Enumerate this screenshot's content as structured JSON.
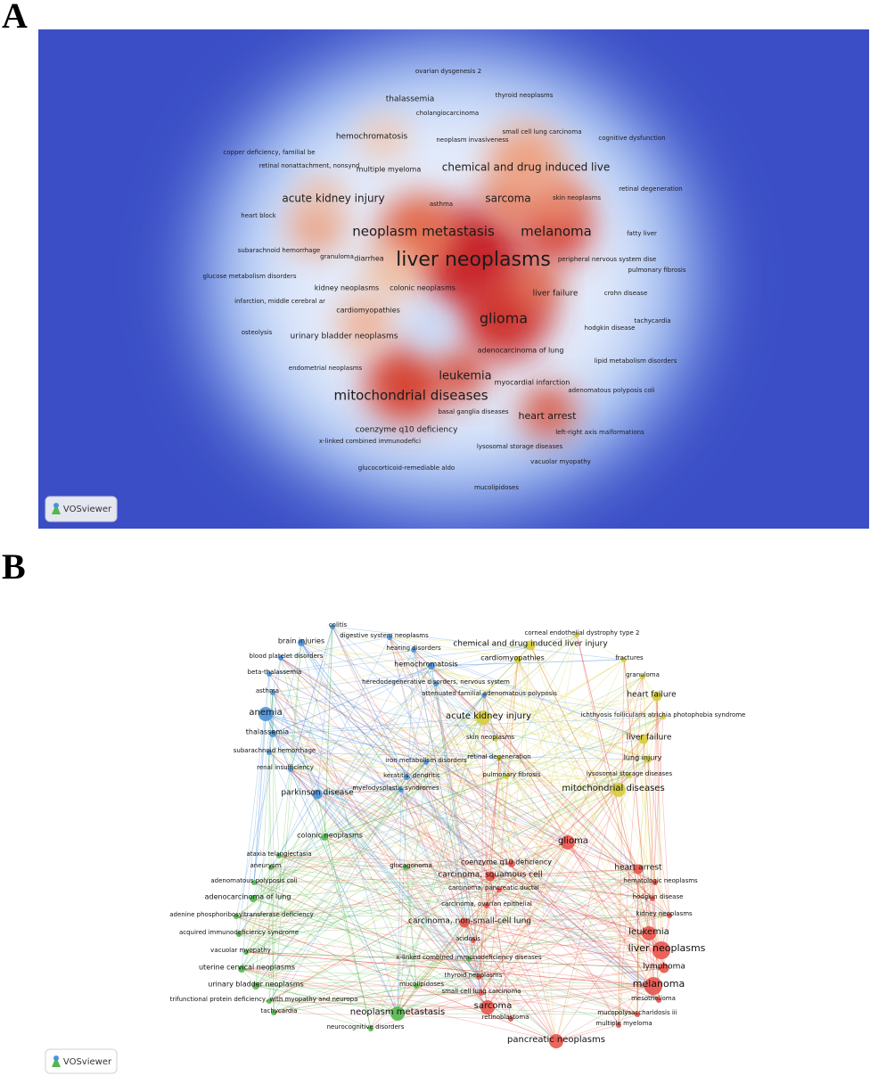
{
  "panel_a": {
    "letter": "A",
    "logo": "VOSviewer",
    "labels": [
      "ovarian dysgenesis 2",
      "thyroid neoplasms",
      "thalassemia",
      "cholangiocarcinoma",
      "small cell lung carcinoma",
      "hemochromatosis",
      "neoplasm invasiveness",
      "cognitive dysfunction",
      "copper deficiency, familial be",
      "retinal nonattachment, nonsynd",
      "multiple myeloma",
      "chemical and drug induced live",
      "retinal degeneration",
      "acute kidney injury",
      "sarcoma",
      "skin neoplasms",
      "asthma",
      "heart block",
      "neoplasm metastasis",
      "melanoma",
      "fatty liver",
      "liver neoplasms",
      "subarachnoid hemorrhage",
      "granuloma",
      "diarrhea",
      "peripheral nervous system dise",
      "pulmonary fibrosis",
      "glucose metabolism disorders",
      "kidney neoplasms",
      "colonic neoplasms",
      "liver failure",
      "crohn disease",
      "infarction, middle cerebral ar",
      "cardiomyopathies",
      "glioma",
      "tachycardia",
      "hodgkin disease",
      "osteolysis",
      "urinary bladder neoplasms",
      "adenocarcinoma of lung",
      "lipid metabolism disorders",
      "endometrial neoplasms",
      "leukemia",
      "myocardial infarction",
      "adenomatous polyposis coli",
      "mitochondrial diseases",
      "basal ganglia diseases",
      "heart arrest",
      "coenzyme q10 deficiency",
      "left-right axis malformations",
      "x-linked combined immunodefici",
      "lysosomal storage diseases",
      "vacuolar myopathy",
      "glucocorticoid-remediable aldo",
      "mucolipidoses"
    ]
  },
  "panel_b": {
    "letter": "B",
    "logo": "VOSviewer",
    "clusters": [
      {
        "color": "#4a93dc",
        "labels": [
          "colitis",
          "brain injuries",
          "digestive system neoplasms",
          "blood platelet disorders",
          "hearing disorders",
          "hemochromatosis",
          "beta-thalassemia",
          "heredodegenerative disorders, nervous system",
          "asthma",
          "attenuated familial adenomatous polyposis",
          "anemia",
          "thalassemia",
          "subarachnoid hemorrhage",
          "iron metabolism disorders",
          "renal insufficiency",
          "keratitis, dendritic",
          "parkinson disease",
          "myelodysplastic syndromes"
        ]
      },
      {
        "color": "#d6cd3c",
        "labels": [
          "corneal endothelial dystrophy type 2",
          "chemical and drug induced liver injury",
          "cardiomyopathies",
          "fractures",
          "granuloma",
          "heart failure",
          "acute kidney injury",
          "ichthyosis follicularis atrichia photophobia syndrome",
          "skin neoplasms",
          "liver failure",
          "retinal degeneration",
          "lung injury",
          "pulmonary fibrosis",
          "lysosomal storage diseases",
          "mitochondrial diseases"
        ]
      },
      {
        "color": "#52b84c",
        "labels": [
          "colonic neoplasms",
          "ataxia telangiectasia",
          "aneurysm",
          "glucagonoma",
          "adenomatous polyposis coli",
          "adenocarcinoma of lung",
          "adenine phosphoribosyltransferase deficiency",
          "acquired immunodeficiency syndrome",
          "vacuolar myopathy",
          "uterine cervical neoplasms",
          "urinary bladder neoplasms",
          "trifunctional protein deficiency, with myopathy and neuropa",
          "tachycardia",
          "neoplasm metastasis",
          "neurocognitive disorders",
          "mucolipidoses",
          "x-linked combined immunodeficiency diseases"
        ]
      },
      {
        "color": "#e8544b",
        "labels": [
          "glioma",
          "heart arrest",
          "coenzyme q10 deficiency",
          "hematologic neoplasms",
          "carcinoma, squamous cell",
          "carcinoma, pancreatic ductal",
          "hodgkin disease",
          "carcinoma, ovarian epithelial",
          "kidney neoplasms",
          "carcinoma, non-small-cell lung",
          "leukemia",
          "acidosis",
          "liver neoplasms",
          "lymphoma",
          "thyroid neoplasms",
          "melanoma",
          "small cell lung carcinoma",
          "mesothelioma",
          "sarcoma",
          "mucopolysaccharidosis iii",
          "retinoblastoma",
          "multiple myeloma",
          "pancreatic neoplasms"
        ]
      }
    ]
  }
}
